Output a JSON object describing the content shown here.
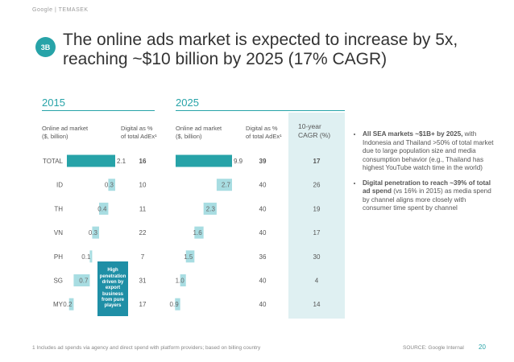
{
  "header": {
    "brand": "Google | TEMASEK"
  },
  "badge": "3B",
  "title": "The online ads market is expected to increase by 5x, reaching ~$10 billion by 2025 (17% CAGR)",
  "years": {
    "y2015": "2015",
    "y2025": "2025"
  },
  "columns": {
    "market_2015": [
      "Online ad market",
      "($, billion)"
    ],
    "digital_2015": [
      "Digital as %",
      "of total AdEx¹"
    ],
    "market_2025": [
      "Online ad market",
      "($, billion)"
    ],
    "digital_2025": [
      "Digital as %",
      "of total AdEx¹"
    ],
    "cagr": [
      "10-year",
      "CAGR (%)"
    ]
  },
  "callout": [
    "High",
    "penetration",
    "driven by",
    "export",
    "business",
    "from pure",
    "players"
  ],
  "bullets": [
    {
      "bold": "All SEA markets ~$1B+ by 2025,",
      "rest": " with Indonesia and Thailand >50% of total market due to large population size and media consumption behavior (e.g., Thailand has highest YouTube watch time in the world)"
    },
    {
      "bold": "Digital penetration to reach ~39% of total ad spend",
      "rest": " (vs 16% in 2015) as media spend by channel aligns more closely with consumer time spent by channel"
    }
  ],
  "footnote": "1 Includes ad spends via agency and direct spend with platform providers; based on billing country",
  "source": "SOURCE: Google Internal",
  "page_number": "20",
  "colors": {
    "teal": "#27a3a8",
    "light_teal": "#a8dde2",
    "dark_teal": "#1f8fa6"
  },
  "chart_data": {
    "type": "bar",
    "categories": [
      "TOTAL",
      "ID",
      "TH",
      "VN",
      "PH",
      "SG",
      "MY"
    ],
    "series": [
      {
        "values_2015": [
          2.1,
          0.3,
          0.4,
          0.3,
          0.1,
          0.7,
          0.2
        ],
        "digital_pct_2015": [
          16,
          10,
          11,
          22,
          7,
          31,
          17
        ],
        "values_2025": [
          9.9,
          2.7,
          2.3,
          1.6,
          1.5,
          1.0,
          0.9
        ],
        "digital_pct_2025": [
          39,
          40,
          40,
          40,
          36,
          40,
          40
        ],
        "cagr": [
          17,
          26,
          19,
          17,
          30,
          4,
          14
        ]
      }
    ],
    "labels_2015": [
      "2.1",
      "0.3",
      "0.4",
      "0.3",
      "0.1",
      "0.7",
      "0.2"
    ],
    "labels_2025": [
      "9.9",
      "2.7",
      "2.3",
      "1.6",
      "1.5",
      "1.0",
      "0.9"
    ],
    "chart_style": "waterfall"
  }
}
